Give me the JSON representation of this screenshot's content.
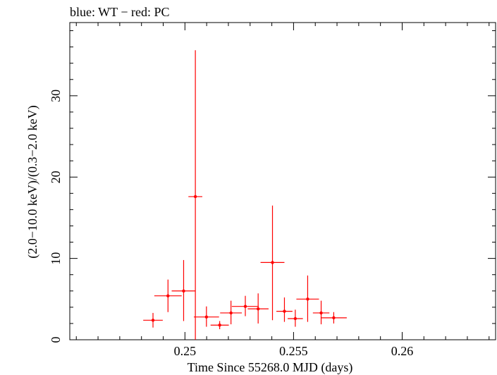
{
  "chart_data": {
    "type": "scatter",
    "title": "blue: WT − red: PC",
    "xlabel": "Time Since 55268.0 MJD (days)",
    "ylabel": "(2.0−10.0 keV)/(0.3−2.0 keV)",
    "xlim": [
      0.2447,
      0.2643
    ],
    "ylim": [
      0,
      39
    ],
    "x_ticks": [
      {
        "value": 0.25,
        "label": "0.25"
      },
      {
        "value": 0.255,
        "label": "0.255"
      },
      {
        "value": 0.26,
        "label": "0.26"
      }
    ],
    "y_ticks": [
      {
        "value": 0,
        "label": "0"
      },
      {
        "value": 10,
        "label": "10"
      },
      {
        "value": 20,
        "label": "20"
      },
      {
        "value": 30,
        "label": "30"
      }
    ],
    "x_minor_step": 0.001,
    "y_minor_step": 2,
    "series": [
      {
        "color": "#ff0000",
        "points": [
          {
            "x": 0.24853,
            "xerr": 0.00045,
            "y": 2.4,
            "yerr_lo": 0.9,
            "yerr_hi": 0.9
          },
          {
            "x": 0.24922,
            "xerr": 0.00063,
            "y": 5.4,
            "yerr_lo": 2.0,
            "yerr_hi": 2.0
          },
          {
            "x": 0.24994,
            "xerr": 0.00055,
            "y": 6.0,
            "yerr_lo": 3.7,
            "yerr_hi": 3.8
          },
          {
            "x": 0.25048,
            "xerr": 0.00032,
            "y": 17.6,
            "yerr_lo": 17.6,
            "yerr_hi": 18.0
          },
          {
            "x": 0.25099,
            "xerr": 0.00058,
            "y": 2.8,
            "yerr_lo": 1.2,
            "yerr_hi": 1.3
          },
          {
            "x": 0.2516,
            "xerr": 0.00042,
            "y": 1.8,
            "yerr_lo": 0.5,
            "yerr_hi": 0.5
          },
          {
            "x": 0.25212,
            "xerr": 0.0005,
            "y": 3.3,
            "yerr_lo": 1.4,
            "yerr_hi": 1.5
          },
          {
            "x": 0.25278,
            "xerr": 0.00062,
            "y": 4.1,
            "yerr_lo": 1.2,
            "yerr_hi": 1.3
          },
          {
            "x": 0.25337,
            "xerr": 0.00048,
            "y": 3.8,
            "yerr_lo": 1.8,
            "yerr_hi": 1.9
          },
          {
            "x": 0.25403,
            "xerr": 0.00055,
            "y": 9.5,
            "yerr_lo": 7.1,
            "yerr_hi": 7.0
          },
          {
            "x": 0.25458,
            "xerr": 0.00037,
            "y": 3.5,
            "yerr_lo": 1.3,
            "yerr_hi": 1.7
          },
          {
            "x": 0.25508,
            "xerr": 0.00035,
            "y": 2.6,
            "yerr_lo": 1.0,
            "yerr_hi": 1.1
          },
          {
            "x": 0.25565,
            "xerr": 0.00052,
            "y": 5.0,
            "yerr_lo": 2.8,
            "yerr_hi": 2.9
          },
          {
            "x": 0.25627,
            "xerr": 0.00038,
            "y": 3.3,
            "yerr_lo": 1.4,
            "yerr_hi": 1.5
          },
          {
            "x": 0.25685,
            "xerr": 0.0006,
            "y": 2.7,
            "yerr_lo": 0.7,
            "yerr_hi": 0.7
          }
        ]
      }
    ]
  }
}
